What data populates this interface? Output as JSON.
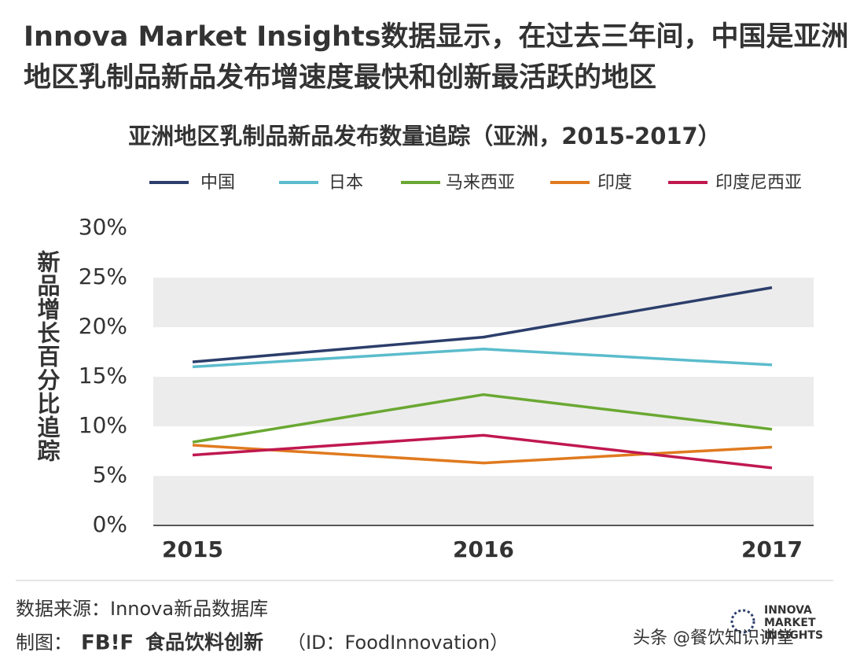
{
  "header": {
    "title_lines": [
      "Innova Market Insights数据显示，在过去三年间，中国是亚洲",
      "地区乳制品新品发布增速度最快和创新最活跃的地区"
    ]
  },
  "chart_data": {
    "type": "line",
    "title": "亚洲地区乳制品新品发布数量追踪（亚洲，2015-2017）",
    "y_label": "新品增长百分比追踪",
    "categories": [
      "2015",
      "2016",
      "2017"
    ],
    "series": [
      {
        "name": "中国",
        "color": "#2c3e6b",
        "values": [
          16.5,
          19.0,
          24.0
        ]
      },
      {
        "name": "日本",
        "color": "#5bbccc",
        "values": [
          16.0,
          17.8,
          16.2
        ]
      },
      {
        "name": "马来西亚",
        "color": "#6aa832",
        "values": [
          8.4,
          13.2,
          9.7
        ]
      },
      {
        "name": "印度",
        "color": "#e07a1f",
        "values": [
          8.1,
          6.3,
          7.9
        ]
      },
      {
        "name": "印度尼西亚",
        "color": "#c0184f",
        "values": [
          7.1,
          9.1,
          5.8
        ]
      }
    ],
    "ylim": [
      0,
      30
    ],
    "yticks": [
      {
        "value": 0,
        "label": "0%"
      },
      {
        "value": 5,
        "label": "5%"
      },
      {
        "value": 10,
        "label": "10%"
      },
      {
        "value": 15,
        "label": "15%"
      },
      {
        "value": 20,
        "label": "20%"
      },
      {
        "value": 25,
        "label": "25%"
      },
      {
        "value": 30,
        "label": "30%"
      }
    ],
    "legend": "top"
  },
  "footer": {
    "source": "数据来源：Innova新品数据库",
    "credit_prefix": "制图：",
    "brand": "FB!F",
    "brand_name": "食品饮料创新",
    "brand_id": "（ID：FoodInnovation）",
    "watermark": "头条 @餐饮知识讲堂",
    "logo_lines": [
      "INNOVA",
      "MARKET",
      "INSIGHTS"
    ]
  }
}
